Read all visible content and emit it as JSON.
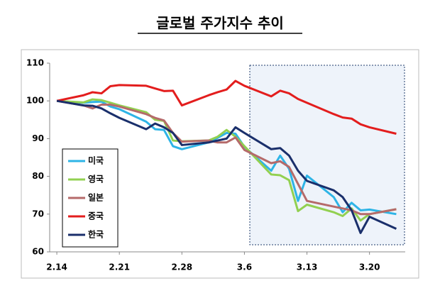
{
  "chart_data": {
    "type": "line",
    "title": "글로벌 주가지수 추이",
    "x": [
      0,
      3,
      4,
      5,
      6,
      7,
      10,
      11,
      12,
      13,
      14,
      17,
      18,
      19,
      20,
      21,
      24,
      25,
      26,
      27,
      28,
      31,
      32,
      33,
      34,
      35,
      38
    ],
    "xlim": [
      -0.8,
      39
    ],
    "xticks": [
      {
        "value": 0,
        "label": "2.14"
      },
      {
        "value": 7,
        "label": "2.21"
      },
      {
        "value": 14,
        "label": "2.28"
      },
      {
        "value": 21,
        "label": "3.6"
      },
      {
        "value": 28,
        "label": "3.13"
      },
      {
        "value": 35,
        "label": "3.20"
      }
    ],
    "ylim": [
      60,
      110
    ],
    "yticks": [
      60,
      70,
      80,
      90,
      100,
      110
    ],
    "legend": "lower-left",
    "series": [
      {
        "name": "미국",
        "color": "#2eb4e6",
        "values": [
          100,
          99.5,
          99.7,
          99.8,
          98.5,
          97.8,
          94.5,
          92.5,
          92.3,
          88,
          87.2,
          89,
          90.2,
          91.5,
          91.3,
          87.8,
          81.5,
          85.5,
          82,
          73.5,
          80.2,
          74.5,
          70.5,
          73,
          71,
          71.2,
          70
        ]
      },
      {
        "name": "영국",
        "color": "#92d050",
        "values": [
          100,
          99.6,
          100.4,
          100.2,
          99.5,
          98.8,
          97,
          95,
          94.7,
          89.5,
          89.3,
          89.5,
          90.5,
          92.3,
          90.5,
          88,
          80.5,
          80.3,
          79,
          70.8,
          72.5,
          70.5,
          69.5,
          71.5,
          68.3,
          70,
          71.3
        ]
      },
      {
        "name": "일본",
        "color": "#b56a6a",
        "values": [
          100,
          98.8,
          98,
          99,
          99,
          98.5,
          96.5,
          95.5,
          94.8,
          91.5,
          89.2,
          89.5,
          89,
          89,
          90.3,
          87,
          83.5,
          84,
          82.5,
          78,
          73.5,
          72,
          71.5,
          71,
          70,
          70,
          71.3
        ]
      },
      {
        "name": "중국",
        "color": "#e31d1d",
        "values": [
          100,
          101.5,
          102.3,
          102,
          103.9,
          104.2,
          104,
          103.3,
          102.6,
          102.7,
          98.8,
          101.5,
          102.3,
          103,
          105.3,
          104,
          101.2,
          102.7,
          102,
          100.5,
          99.5,
          96.5,
          95.6,
          95.3,
          93.8,
          93,
          91.3
        ]
      },
      {
        "name": "한국",
        "color": "#1a2f6b",
        "values": [
          100,
          98.8,
          98.7,
          98,
          96.7,
          95.5,
          92.5,
          94,
          93,
          91.5,
          88.3,
          89,
          89.5,
          90,
          93,
          91.5,
          87.2,
          87.5,
          85.5,
          81.5,
          78.8,
          76.3,
          74.5,
          71,
          65,
          69.3,
          66.1
        ]
      }
    ]
  }
}
